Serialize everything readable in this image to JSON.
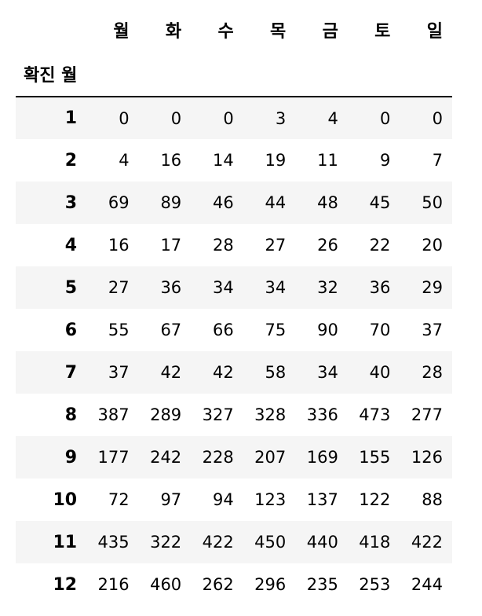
{
  "table": {
    "columns": [
      "월",
      "화",
      "수",
      "목",
      "금",
      "토",
      "일"
    ],
    "index_name": "확진 월",
    "rows": [
      {
        "index": "1",
        "values": [
          "0",
          "0",
          "0",
          "3",
          "4",
          "0",
          "0"
        ]
      },
      {
        "index": "2",
        "values": [
          "4",
          "16",
          "14",
          "19",
          "11",
          "9",
          "7"
        ]
      },
      {
        "index": "3",
        "values": [
          "69",
          "89",
          "46",
          "44",
          "48",
          "45",
          "50"
        ]
      },
      {
        "index": "4",
        "values": [
          "16",
          "17",
          "28",
          "27",
          "26",
          "22",
          "20"
        ]
      },
      {
        "index": "5",
        "values": [
          "27",
          "36",
          "34",
          "34",
          "32",
          "36",
          "29"
        ]
      },
      {
        "index": "6",
        "values": [
          "55",
          "67",
          "66",
          "75",
          "90",
          "70",
          "37"
        ]
      },
      {
        "index": "7",
        "values": [
          "37",
          "42",
          "42",
          "58",
          "34",
          "40",
          "28"
        ]
      },
      {
        "index": "8",
        "values": [
          "387",
          "289",
          "327",
          "328",
          "336",
          "473",
          "277"
        ]
      },
      {
        "index": "9",
        "values": [
          "177",
          "242",
          "228",
          "207",
          "169",
          "155",
          "126"
        ]
      },
      {
        "index": "10",
        "values": [
          "72",
          "97",
          "94",
          "123",
          "137",
          "122",
          "88"
        ]
      },
      {
        "index": "11",
        "values": [
          "435",
          "322",
          "422",
          "450",
          "440",
          "418",
          "422"
        ]
      },
      {
        "index": "12",
        "values": [
          "216",
          "460",
          "262",
          "296",
          "235",
          "253",
          "244"
        ]
      }
    ]
  }
}
